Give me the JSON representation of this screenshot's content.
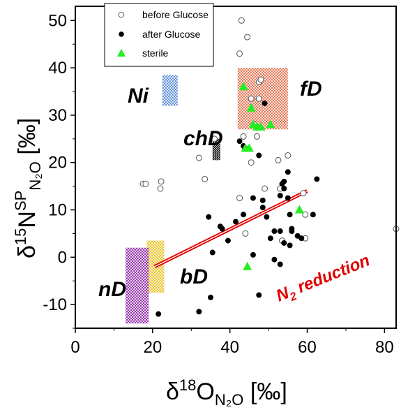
{
  "chart_data": {
    "type": "scatter",
    "title": "",
    "xlabel": {
      "prefix": "δ",
      "sup": "18",
      "main": "O",
      "sub": "N2O",
      "unit": " [‰]"
    },
    "ylabel": {
      "prefix": "δ",
      "sup": "15",
      "main": "N",
      "sup2": "SP",
      "sub": "N2O",
      "unit": " [‰]"
    },
    "xlim": [
      0,
      83
    ],
    "ylim": [
      -15,
      53
    ],
    "x_ticks": [
      0,
      20,
      40,
      60,
      80
    ],
    "y_ticks": [
      -10,
      0,
      10,
      20,
      30,
      40,
      50
    ],
    "legend": {
      "placement": "top-left",
      "entries": [
        {
          "label": "before Glucose",
          "marker": "open-circle"
        },
        {
          "label": "after Glucose",
          "marker": "filled-circle"
        },
        {
          "label": "sterile",
          "marker": "green-triangle"
        }
      ]
    },
    "series": [
      {
        "name": "before Glucose",
        "marker": "open-circle",
        "points": [
          [
            17.5,
            15.5
          ],
          [
            18.2,
            15.5
          ],
          [
            22.2,
            16.0
          ],
          [
            22.0,
            14.5
          ],
          [
            32.0,
            21.0
          ],
          [
            33.5,
            16.5
          ],
          [
            42.5,
            43.0
          ],
          [
            43.0,
            50.0
          ],
          [
            44.5,
            46.5
          ],
          [
            45.5,
            33.5
          ],
          [
            47.5,
            33.5
          ],
          [
            47.5,
            37.0
          ],
          [
            48.0,
            37.5
          ],
          [
            46.5,
            28.0
          ],
          [
            47.0,
            27.5
          ],
          [
            43.5,
            25.5
          ],
          [
            44.0,
            23.0
          ],
          [
            45.5,
            20.0
          ],
          [
            47.0,
            25.5
          ],
          [
            52.5,
            20.5
          ],
          [
            55.0,
            21.5
          ],
          [
            53.0,
            14.5
          ],
          [
            49.0,
            14.5
          ],
          [
            42.5,
            12.5
          ],
          [
            44.0,
            5.0
          ],
          [
            53.5,
            3.5
          ],
          [
            59.0,
            13.5
          ],
          [
            59.5,
            9.0
          ],
          [
            59.5,
            4.0
          ],
          [
            83.0,
            6.0
          ],
          [
            36.0,
            25.0
          ]
        ]
      },
      {
        "name": "after Glucose",
        "marker": "filled-circle",
        "points": [
          [
            21.5,
            -12.0
          ],
          [
            32.0,
            -11.5
          ],
          [
            35.0,
            -8.5
          ],
          [
            35.5,
            1.0
          ],
          [
            34.5,
            8.5
          ],
          [
            37.5,
            6.5
          ],
          [
            38.0,
            6.0
          ],
          [
            39.5,
            3.5
          ],
          [
            41.5,
            7.5
          ],
          [
            43.5,
            9.0
          ],
          [
            42.5,
            24.5
          ],
          [
            43.5,
            23.5
          ],
          [
            47.5,
            21.5
          ],
          [
            49.0,
            32.5
          ],
          [
            46.0,
            12.5
          ],
          [
            48.5,
            10.5
          ],
          [
            48.5,
            12.0
          ],
          [
            49.5,
            8.5
          ],
          [
            51.5,
            5.5
          ],
          [
            53.0,
            5.5
          ],
          [
            53.5,
            15.5
          ],
          [
            54.0,
            16.0
          ],
          [
            55.0,
            18.0
          ],
          [
            55.0,
            12.5
          ],
          [
            54.0,
            14.5
          ],
          [
            53.0,
            13.0
          ],
          [
            55.5,
            9.0
          ],
          [
            56.0,
            6.0
          ],
          [
            56.0,
            5.5
          ],
          [
            54.0,
            3.0
          ],
          [
            55.5,
            2.5
          ],
          [
            57.5,
            4.5
          ],
          [
            58.5,
            4.0
          ],
          [
            61.5,
            9.0
          ],
          [
            62.5,
            16.5
          ],
          [
            46.0,
            0.5
          ],
          [
            47.5,
            -8.0
          ],
          [
            51.5,
            -0.5
          ],
          [
            53.0,
            -1.5
          ],
          [
            50.5,
            4.0
          ]
        ]
      },
      {
        "name": "sterile",
        "marker": "green-triangle",
        "points": [
          [
            43.5,
            36.0
          ],
          [
            45.5,
            31.5
          ],
          [
            46.0,
            28.0
          ],
          [
            47.0,
            27.5
          ],
          [
            48.0,
            27.5
          ],
          [
            50.5,
            28.0
          ],
          [
            44.0,
            23.0
          ],
          [
            45.0,
            23.0
          ],
          [
            58.0,
            10.0
          ],
          [
            44.5,
            -2.0
          ]
        ]
      }
    ],
    "regions": [
      {
        "label": "Ni",
        "x": [
          22.5,
          26.5
        ],
        "y": [
          32,
          38.5
        ],
        "color": "#4a7fd6"
      },
      {
        "label": "fD",
        "x": [
          42,
          55
        ],
        "y": [
          27,
          40
        ],
        "color": "#e0603a"
      },
      {
        "label": "chD",
        "x": [
          35.5,
          37.5
        ],
        "y": [
          20.5,
          25
        ],
        "color": "#000000"
      },
      {
        "label": "bD",
        "x": [
          18.5,
          23
        ],
        "y": [
          -7.5,
          3.5
        ],
        "color": "#e6b800"
      },
      {
        "label": "nD",
        "x": [
          13,
          19
        ],
        "y": [
          -14,
          2
        ],
        "color": "#8a1ca6"
      }
    ],
    "trend_line": {
      "label": "N2O reduction",
      "x": [
        20.5,
        60
      ],
      "y": [
        -2,
        14
      ],
      "color": "#e00000"
    }
  }
}
